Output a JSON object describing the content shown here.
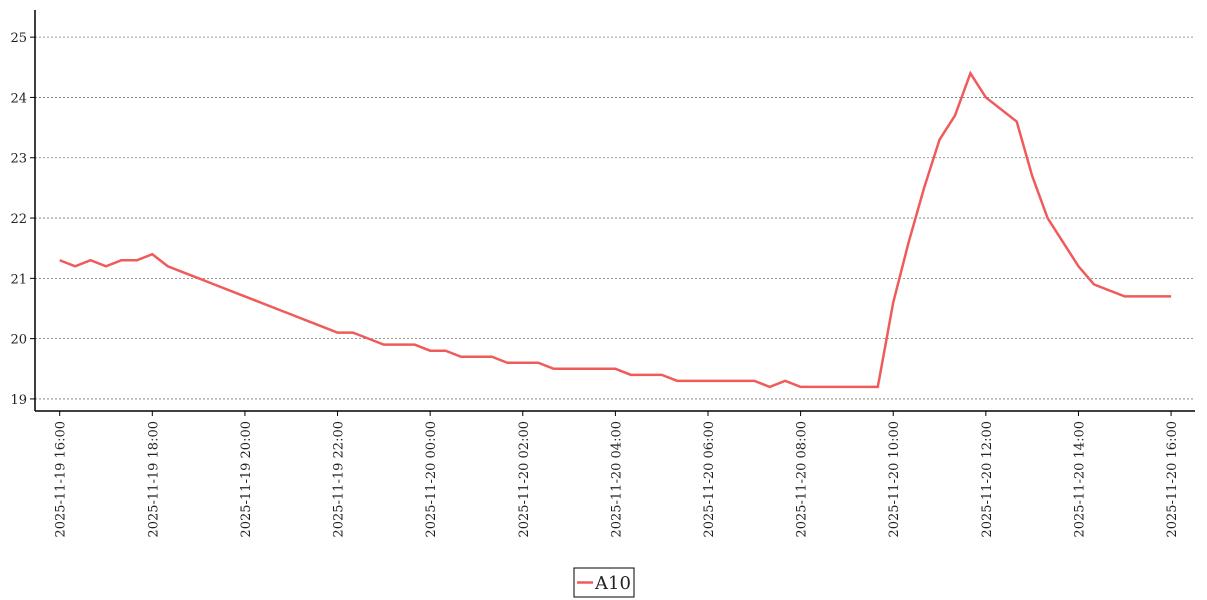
{
  "chart_data": {
    "type": "line",
    "x": [
      "2025-11-19 16:00",
      "2025-11-19 16:20",
      "2025-11-19 16:40",
      "2025-11-19 17:00",
      "2025-11-19 17:20",
      "2025-11-19 17:40",
      "2025-11-19 18:00",
      "2025-11-19 18:20",
      "2025-11-19 18:40",
      "2025-11-19 19:00",
      "2025-11-19 19:20",
      "2025-11-19 19:40",
      "2025-11-19 20:00",
      "2025-11-19 20:20",
      "2025-11-19 20:40",
      "2025-11-19 21:00",
      "2025-11-19 21:20",
      "2025-11-19 21:40",
      "2025-11-19 22:00",
      "2025-11-19 22:20",
      "2025-11-19 22:40",
      "2025-11-19 23:00",
      "2025-11-19 23:20",
      "2025-11-19 23:40",
      "2025-11-20 00:00",
      "2025-11-20 00:20",
      "2025-11-20 00:40",
      "2025-11-20 01:00",
      "2025-11-20 01:20",
      "2025-11-20 01:40",
      "2025-11-20 02:00",
      "2025-11-20 02:20",
      "2025-11-20 02:40",
      "2025-11-20 03:00",
      "2025-11-20 03:20",
      "2025-11-20 03:40",
      "2025-11-20 04:00",
      "2025-11-20 04:20",
      "2025-11-20 04:40",
      "2025-11-20 05:00",
      "2025-11-20 05:20",
      "2025-11-20 05:40",
      "2025-11-20 06:00",
      "2025-11-20 06:20",
      "2025-11-20 06:40",
      "2025-11-20 07:00",
      "2025-11-20 07:20",
      "2025-11-20 07:40",
      "2025-11-20 08:00",
      "2025-11-20 08:20",
      "2025-11-20 08:40",
      "2025-11-20 09:00",
      "2025-11-20 09:20",
      "2025-11-20 09:40",
      "2025-11-20 10:00",
      "2025-11-20 10:20",
      "2025-11-20 10:40",
      "2025-11-20 11:00",
      "2025-11-20 11:20",
      "2025-11-20 11:40",
      "2025-11-20 12:00",
      "2025-11-20 12:20",
      "2025-11-20 12:40",
      "2025-11-20 13:00",
      "2025-11-20 13:20",
      "2025-11-20 13:40",
      "2025-11-20 14:00",
      "2025-11-20 14:20",
      "2025-11-20 14:40",
      "2025-11-20 15:00",
      "2025-11-20 15:20",
      "2025-11-20 15:40",
      "2025-11-20 16:00"
    ],
    "series": [
      {
        "name": "A10",
        "color": "#ef5b5b",
        "values": [
          21.3,
          21.2,
          21.3,
          21.2,
          21.3,
          21.3,
          21.4,
          21.2,
          21.1,
          21.0,
          20.9,
          20.8,
          20.7,
          20.6,
          20.5,
          20.4,
          20.3,
          20.2,
          20.1,
          20.1,
          20.0,
          19.9,
          19.9,
          19.9,
          19.8,
          19.8,
          19.7,
          19.7,
          19.7,
          19.6,
          19.6,
          19.6,
          19.5,
          19.5,
          19.5,
          19.5,
          19.5,
          19.4,
          19.4,
          19.4,
          19.3,
          19.3,
          19.3,
          19.3,
          19.3,
          19.3,
          19.2,
          19.3,
          19.2,
          19.2,
          19.2,
          19.2,
          19.2,
          19.2,
          20.6,
          21.6,
          22.5,
          23.3,
          23.7,
          24.4,
          24.0,
          23.8,
          23.6,
          22.7,
          22.0,
          21.6,
          21.2,
          20.9,
          20.8,
          20.7,
          20.7,
          20.7,
          20.7
        ]
      }
    ],
    "xlim": [
      "2025-11-19 15:28",
      "2025-11-20 16:31"
    ],
    "xticks": [
      "2025-11-19 16:00",
      "2025-11-19 18:00",
      "2025-11-19 20:00",
      "2025-11-19 22:00",
      "2025-11-20 00:00",
      "2025-11-20 02:00",
      "2025-11-20 04:00",
      "2025-11-20 06:00",
      "2025-11-20 08:00",
      "2025-11-20 10:00",
      "2025-11-20 12:00",
      "2025-11-20 14:00",
      "2025-11-20 16:00"
    ],
    "ylim": [
      18.8,
      25.45
    ],
    "yticks": [
      19,
      20,
      21,
      22,
      23,
      24,
      25
    ],
    "grid": true,
    "legend": "bottom"
  }
}
